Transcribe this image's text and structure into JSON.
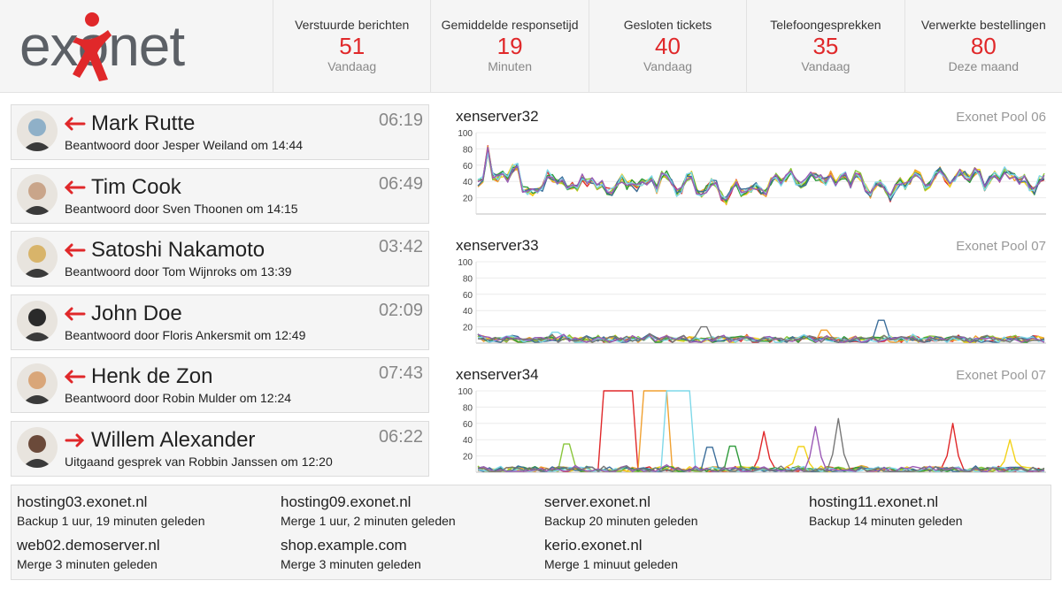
{
  "header": {
    "logo_text": "exonet",
    "stats": [
      {
        "label": "Verstuurde berichten",
        "value": "51",
        "sub": "Vandaag"
      },
      {
        "label": "Gemiddelde responsetijd",
        "value": "19",
        "sub": "Minuten"
      },
      {
        "label": "Gesloten tickets",
        "value": "40",
        "sub": "Vandaag"
      },
      {
        "label": "Telefoongesprekken",
        "value": "35",
        "sub": "Vandaag"
      },
      {
        "label": "Verwerkte bestellingen",
        "value": "80",
        "sub": "Deze maand"
      }
    ]
  },
  "calls": [
    {
      "name": "Mark Rutte",
      "direction": "incoming",
      "subtitle": "Beantwoord door Jesper Weiland om 14:44",
      "duration": "06:19",
      "avatar_color": "#8fb0c8"
    },
    {
      "name": "Tim Cook",
      "direction": "incoming",
      "subtitle": "Beantwoord door Sven Thoonen om 14:15",
      "duration": "06:49",
      "avatar_color": "#c9a58a"
    },
    {
      "name": "Satoshi Nakamoto",
      "direction": "incoming",
      "subtitle": "Beantwoord door Tom Wijnroks om 13:39",
      "duration": "03:42",
      "avatar_color": "#d8b46a"
    },
    {
      "name": "John Doe",
      "direction": "incoming",
      "subtitle": "Beantwoord door Floris Ankersmit om 12:49",
      "duration": "02:09",
      "avatar_color": "#2a2a2a"
    },
    {
      "name": "Henk de Zon",
      "direction": "incoming",
      "subtitle": "Beantwoord door Robin Mulder om 12:24",
      "duration": "07:43",
      "avatar_color": "#d9a679"
    },
    {
      "name": "Willem Alexander",
      "direction": "outgoing",
      "subtitle": "Uitgaand gesprek van Robbin Janssen om 12:20",
      "duration": "06:22",
      "avatar_color": "#6b4a3a"
    }
  ],
  "colors": {
    "accent": "#e0282a",
    "series": [
      "#e0282a",
      "#f0a030",
      "#f2d21a",
      "#8ac63c",
      "#2e9a3a",
      "#3c6e9a",
      "#7fd8e8",
      "#9b59b6",
      "#777777",
      "#6b6b1a"
    ]
  },
  "chart_data": [
    {
      "type": "line",
      "title": "xenserver32",
      "pool": "Exonet Pool 06",
      "ylim": [
        0,
        100
      ],
      "yticks": [
        20,
        40,
        60,
        80,
        100
      ],
      "grid": true,
      "base": [
        38,
        42,
        80,
        46,
        44,
        48,
        44,
        56,
        58,
        30,
        28,
        27,
        30,
        33,
        50,
        44,
        40,
        42,
        30,
        34,
        33,
        45,
        38,
        42,
        34,
        38,
        28,
        27,
        38,
        44,
        35,
        38,
        32,
        40,
        37,
        42,
        30,
        48,
        48,
        38,
        26,
        30,
        45,
        48,
        28,
        24,
        30,
        40,
        36,
        22,
        16,
        30,
        40,
        26,
        28,
        30,
        34,
        28,
        26,
        40,
        46,
        38,
        44,
        52,
        40,
        34,
        40,
        50,
        46,
        44,
        40,
        48,
        38,
        44,
        48,
        36,
        50,
        46,
        32,
        24,
        34,
        38,
        30,
        20,
        32,
        40,
        34,
        40,
        50,
        46,
        32,
        36,
        48,
        54,
        44,
        38,
        44,
        52,
        48,
        42,
        52,
        50,
        30,
        42,
        48,
        44,
        54,
        48,
        46,
        40,
        44,
        32,
        28,
        42,
        46
      ],
      "series_count": 8
    },
    {
      "type": "line",
      "title": "xenserver33",
      "pool": "Exonet Pool 07",
      "ylim": [
        0,
        100
      ],
      "yticks": [
        20,
        40,
        60,
        80,
        100
      ],
      "grid": true,
      "base": [
        8,
        5,
        4,
        6,
        3,
        5,
        8,
        4,
        2,
        6,
        4,
        3,
        5,
        7,
        4,
        8,
        6,
        3,
        4,
        5,
        3,
        6,
        5,
        4,
        7,
        3,
        5,
        6,
        4,
        3,
        8,
        5,
        4,
        6,
        3,
        5,
        6,
        4,
        5,
        3,
        7,
        4,
        5,
        6,
        3,
        4,
        5,
        7,
        4,
        3,
        6,
        5,
        4,
        3,
        5,
        6,
        4,
        7,
        5,
        3,
        4,
        6,
        5,
        3,
        4,
        5,
        6,
        4,
        3,
        5,
        4,
        6,
        5,
        3,
        4,
        5,
        7,
        4,
        3,
        6,
        5,
        4,
        3,
        5,
        6,
        4,
        3,
        5,
        4,
        6,
        5,
        3,
        4,
        5,
        7,
        4,
        3,
        6,
        5,
        4
      ],
      "series_count": 9
    },
    {
      "type": "line",
      "title": "xenserver34",
      "pool": "Exonet Pool 07",
      "ylim": [
        0,
        100
      ],
      "yticks": [
        20,
        40,
        60,
        80,
        100
      ],
      "grid": true,
      "base": [
        4,
        3,
        2,
        3,
        4,
        2,
        3,
        5,
        3,
        2,
        4,
        3,
        2,
        3,
        4,
        3,
        2,
        5,
        3,
        4,
        3,
        2,
        4,
        3,
        2,
        3,
        4,
        2,
        3,
        4,
        3,
        2,
        3,
        5,
        4,
        3,
        2,
        3,
        4,
        3,
        2,
        3,
        4,
        3,
        2,
        3,
        4,
        2,
        3,
        4,
        3,
        2,
        3,
        4,
        3,
        2,
        4,
        3,
        2,
        3,
        4,
        3,
        2,
        3,
        4,
        2,
        3,
        4,
        3,
        2,
        3,
        4,
        3,
        2,
        3,
        4,
        3,
        2,
        3,
        4,
        3,
        2,
        3,
        4,
        3,
        2,
        3,
        4,
        3,
        2,
        3,
        4,
        3,
        2,
        3,
        4,
        3,
        2,
        3,
        4
      ],
      "series_count": 9
    }
  ],
  "backups": [
    {
      "host": "hosting03.exonet.nl",
      "status": "Backup 1 uur, 19 minuten geleden"
    },
    {
      "host": "hosting09.exonet.nl",
      "status": "Merge 1 uur, 2 minuten geleden"
    },
    {
      "host": "server.exonet.nl",
      "status": "Backup 20 minuten geleden"
    },
    {
      "host": "hosting11.exonet.nl",
      "status": "Backup 14 minuten geleden"
    },
    {
      "host": "web02.demoserver.nl",
      "status": "Merge 3 minuten geleden"
    },
    {
      "host": "shop.example.com",
      "status": "Merge 3 minuten geleden"
    },
    {
      "host": "kerio.exonet.nl",
      "status": "Merge 1 minuut geleden"
    }
  ]
}
